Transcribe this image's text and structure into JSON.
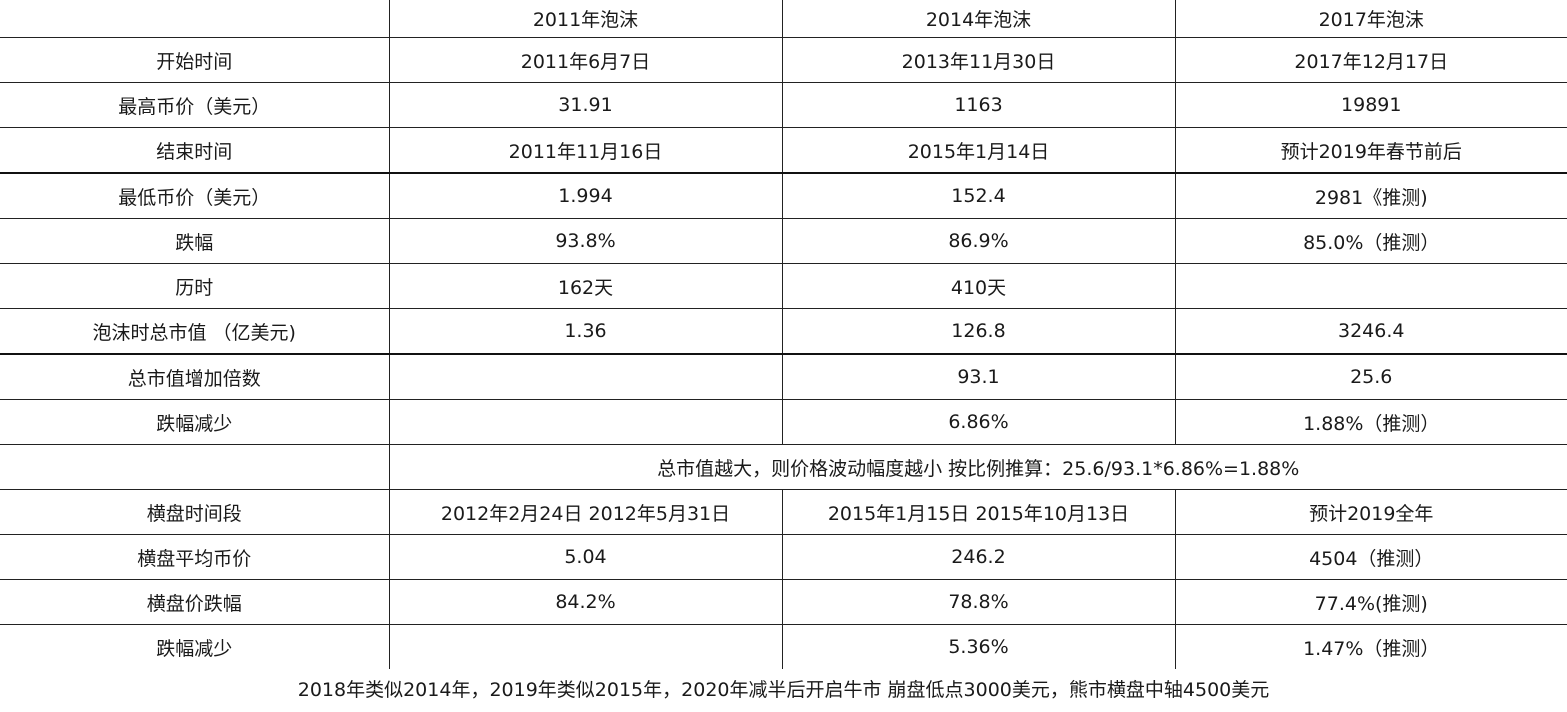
{
  "table": {
    "columns": [
      "",
      "2011年泡沫",
      "2014年泡沫",
      "2017年泡沫"
    ],
    "rows": [
      {
        "label": "开始时间",
        "values": [
          "2011年6月7日",
          "2013年11月30日",
          "2017年12月17日"
        ]
      },
      {
        "label": "最高币价（美元）",
        "values": [
          "31.91",
          "1163",
          "19891"
        ]
      },
      {
        "label": "结束时间",
        "values": [
          "2011年11月16日",
          "2015年1月14日",
          "预计2019年春节前后"
        ]
      },
      {
        "label": "最低币价（美元）",
        "values": [
          "1.994",
          "152.4",
          "2981《推测)"
        ]
      },
      {
        "label": "跌幅",
        "values": [
          "93.8%",
          "86.9%",
          "85.0%（推测）"
        ]
      },
      {
        "label": "历时",
        "values": [
          "162天",
          "410天",
          ""
        ]
      },
      {
        "label": "泡沫时总市值 （亿美元)",
        "values": [
          "1.36",
          "126.8",
          "3246.4"
        ]
      },
      {
        "label": "总市值增加倍数",
        "values": [
          "",
          "93.1",
          "25.6"
        ]
      },
      {
        "label": "跌幅减少",
        "values": [
          "",
          "6.86%",
          "1.88%（推测）"
        ]
      }
    ],
    "note_row": "总市值越大，则价格波动幅度越小 按比例推算：25.6/93.1*6.86%=1.88%",
    "rows2": [
      {
        "label": "横盘时间段",
        "values": [
          "2012年2月24日 2012年5月31日",
          "2015年1月15日 2015年10月13日",
          "预计2019全年"
        ]
      },
      {
        "label": "横盘平均币价",
        "values": [
          "5.04",
          "246.2",
          "4504（推测）"
        ]
      },
      {
        "label": "横盘价跌幅",
        "values": [
          "84.2%",
          "78.8%",
          "77.4%(推测)"
        ]
      },
      {
        "label": "跌幅减少",
        "values": [
          "",
          "5.36%",
          "1.47%（推测）"
        ]
      }
    ]
  },
  "footer": "2018年类似2014年，2019年类似2015年，2020年减半后开启牛市 崩盘低点3000美元，熊市横盘中轴4500美元"
}
